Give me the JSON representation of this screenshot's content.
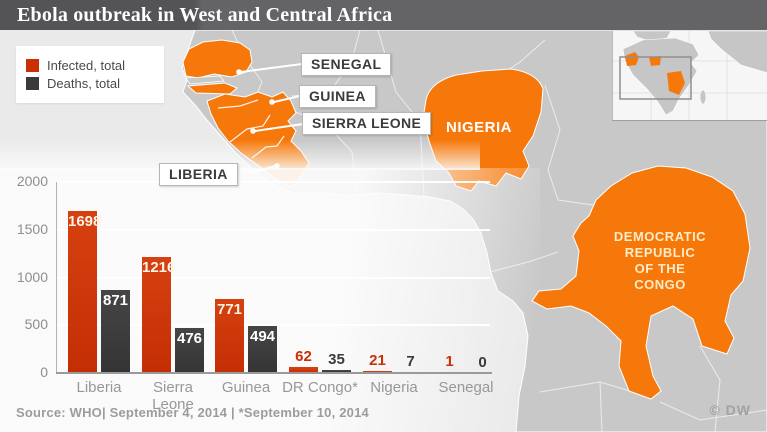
{
  "header": {
    "title": "Ebola outbreak in West and Central Africa"
  },
  "legend": {
    "items": [
      {
        "label": "Infected, total",
        "color": "#c93004"
      },
      {
        "label": "Deaths, total",
        "color": "#3a3a3a"
      }
    ]
  },
  "map": {
    "colors": {
      "highlight": "#f6780a",
      "land": "#c8c8c8",
      "sea": "#eaeaea"
    },
    "labels": [
      {
        "text": "SENEGAL"
      },
      {
        "text": "GUINEA"
      },
      {
        "text": "SIERRA LEONE"
      },
      {
        "text": "LIBERIA"
      }
    ],
    "country_labels": {
      "nigeria": "NIGERIA",
      "drc_lines": [
        "DEMOCRATIC",
        "REPUBLIC",
        "OF THE",
        "CONGO"
      ]
    }
  },
  "chart_data": {
    "type": "bar",
    "categories": [
      "Liberia",
      "Sierra Leone",
      "Guinea",
      "DR Congo*",
      "Nigeria",
      "Senegal"
    ],
    "series": [
      {
        "name": "Infected, total",
        "color": "#c93004",
        "values": [
          1698,
          1216,
          771,
          62,
          21,
          1
        ]
      },
      {
        "name": "Deaths, total",
        "color": "#3a3a3a",
        "values": [
          871,
          476,
          494,
          35,
          7,
          0
        ]
      }
    ],
    "title": "",
    "xlabel": "",
    "ylabel": "",
    "ylim": [
      0,
      2000
    ],
    "yticks": [
      0,
      500,
      1000,
      1500,
      2000
    ],
    "grid": true,
    "legend_position": "top-left"
  },
  "footer": {
    "source": "Source: WHO|  September 4, 2014 | *September 10, 2014",
    "credit": "© DW"
  }
}
